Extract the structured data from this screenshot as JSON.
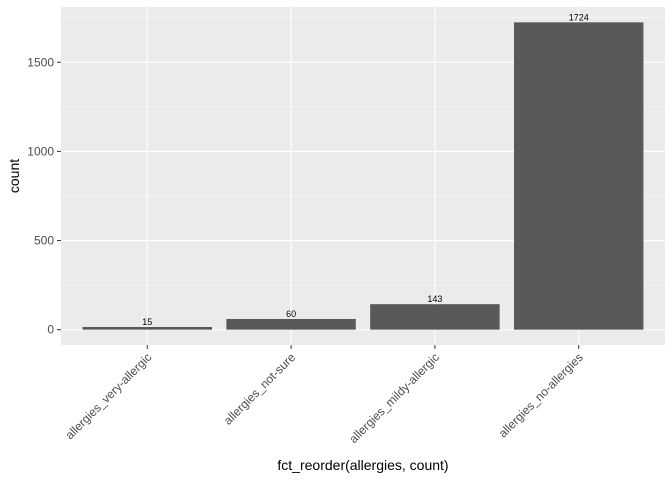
{
  "chart_data": {
    "type": "bar",
    "categories": [
      "allergies_very-allergic",
      "allergies_not-sure",
      "allergies_mildy-allergic",
      "allergies_no-allergies"
    ],
    "values": [
      15,
      60,
      143,
      1724
    ],
    "data_labels": [
      "15",
      "60",
      "143",
      "1724"
    ],
    "title": "",
    "xlabel": "fct_reorder(allergies, count)",
    "ylabel": "count",
    "ylim": [
      -86,
      1810
    ],
    "yticks": [
      0,
      500,
      1000,
      1500
    ],
    "ytick_labels": [
      "0",
      "500",
      "1000",
      "1500"
    ],
    "grid": true,
    "colors": {
      "panel": "#ebebeb",
      "grid_major": "#ffffff",
      "bar": "#595959",
      "tick": "#333333"
    }
  }
}
